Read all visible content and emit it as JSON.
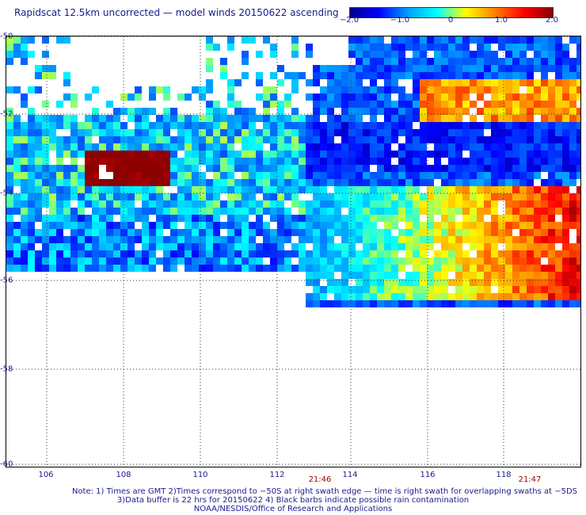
{
  "title": "Rapidscat 12.5km uncorrected — model winds 20150622 ascending",
  "colorbar": {
    "ticks": [
      "−2.0",
      "−1.0",
      "0",
      "1.0",
      "2.0"
    ],
    "min": -2.0,
    "max": 2.0,
    "colors": [
      "#00008c",
      "#0000ff",
      "#00a0ff",
      "#00ffff",
      "#ffff00",
      "#ff8000",
      "#ff0000",
      "#8c0000"
    ]
  },
  "axes": {
    "lat_labels": [
      "-50",
      "-52",
      "-54",
      "-56",
      "-58",
      "-60"
    ],
    "lon_labels": [
      "106",
      "108",
      "110",
      "112",
      "114",
      "116",
      "118"
    ]
  },
  "times": [
    "21:46",
    "21:47"
  ],
  "notes": [
    "Note: 1) Times are GMT 2)Times correspond to −50S at right swath edge — time is right swath for overlapping swaths at −5DS",
    "3)Data buffer is 22 hrs for 20150622 4) Black barbs indicate possible rain contamination",
    "NOAA/NESDIS/Office of Research and Applications"
  ]
}
